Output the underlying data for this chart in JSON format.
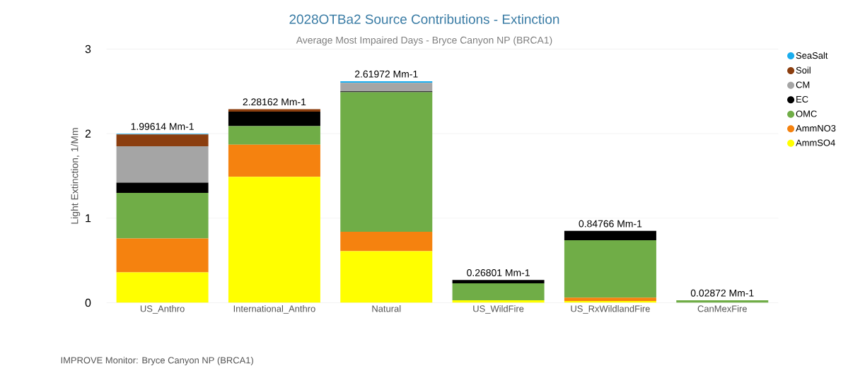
{
  "chart_data": {
    "type": "bar",
    "stacked": true,
    "title": "2028OTBa2 Source Contributions - Extinction",
    "subtitle": "Average Most Impaired Days - Bryce Canyon NP (BRCA1)",
    "ylabel": "Light Extinction, 1/Mm",
    "categories": [
      "US_Anthro",
      "International_Anthro",
      "Natural",
      "US_WildFire",
      "US_RxWildlandFire",
      "CanMexFire"
    ],
    "series": [
      {
        "name": "AmmSO4",
        "color": "#ffff00",
        "values": [
          0.36,
          1.49,
          0.61,
          0.03,
          0.02,
          0.0
        ]
      },
      {
        "name": "AmmNO3",
        "color": "#f5820f",
        "values": [
          0.4,
          0.38,
          0.23,
          0.0,
          0.04,
          0.0
        ]
      },
      {
        "name": "OMC",
        "color": "#70ad47",
        "values": [
          0.54,
          0.22,
          1.65,
          0.2,
          0.68,
          0.03
        ]
      },
      {
        "name": "EC",
        "color": "#000000",
        "values": [
          0.12,
          0.17,
          0.01,
          0.04,
          0.11,
          0.0
        ]
      },
      {
        "name": "CM",
        "color": "#a5a5a5",
        "values": [
          0.43,
          0.0,
          0.1,
          0.0,
          0.0,
          0.0
        ]
      },
      {
        "name": "Soil",
        "color": "#8b3e0f",
        "values": [
          0.14,
          0.03,
          0.0,
          0.0,
          0.0,
          0.0
        ]
      },
      {
        "name": "SeaSalt",
        "color": "#1aadee",
        "values": [
          0.01,
          0.0,
          0.02,
          0.0,
          0.0,
          0.0
        ]
      }
    ],
    "totals": [
      "1.99614 Mm-1",
      "2.28162 Mm-1",
      "2.61972 Mm-1",
      "0.26801 Mm-1",
      "0.84766 Mm-1",
      "0.02872 Mm-1"
    ],
    "ylim": [
      0,
      3
    ],
    "yticks": [
      0,
      1,
      2,
      3
    ],
    "grid": "y",
    "legend": "right",
    "marker": "circle",
    "annotations": [
      "IMPROVE Monitor: Bryce Canyon NP (BRCA1)"
    ]
  }
}
